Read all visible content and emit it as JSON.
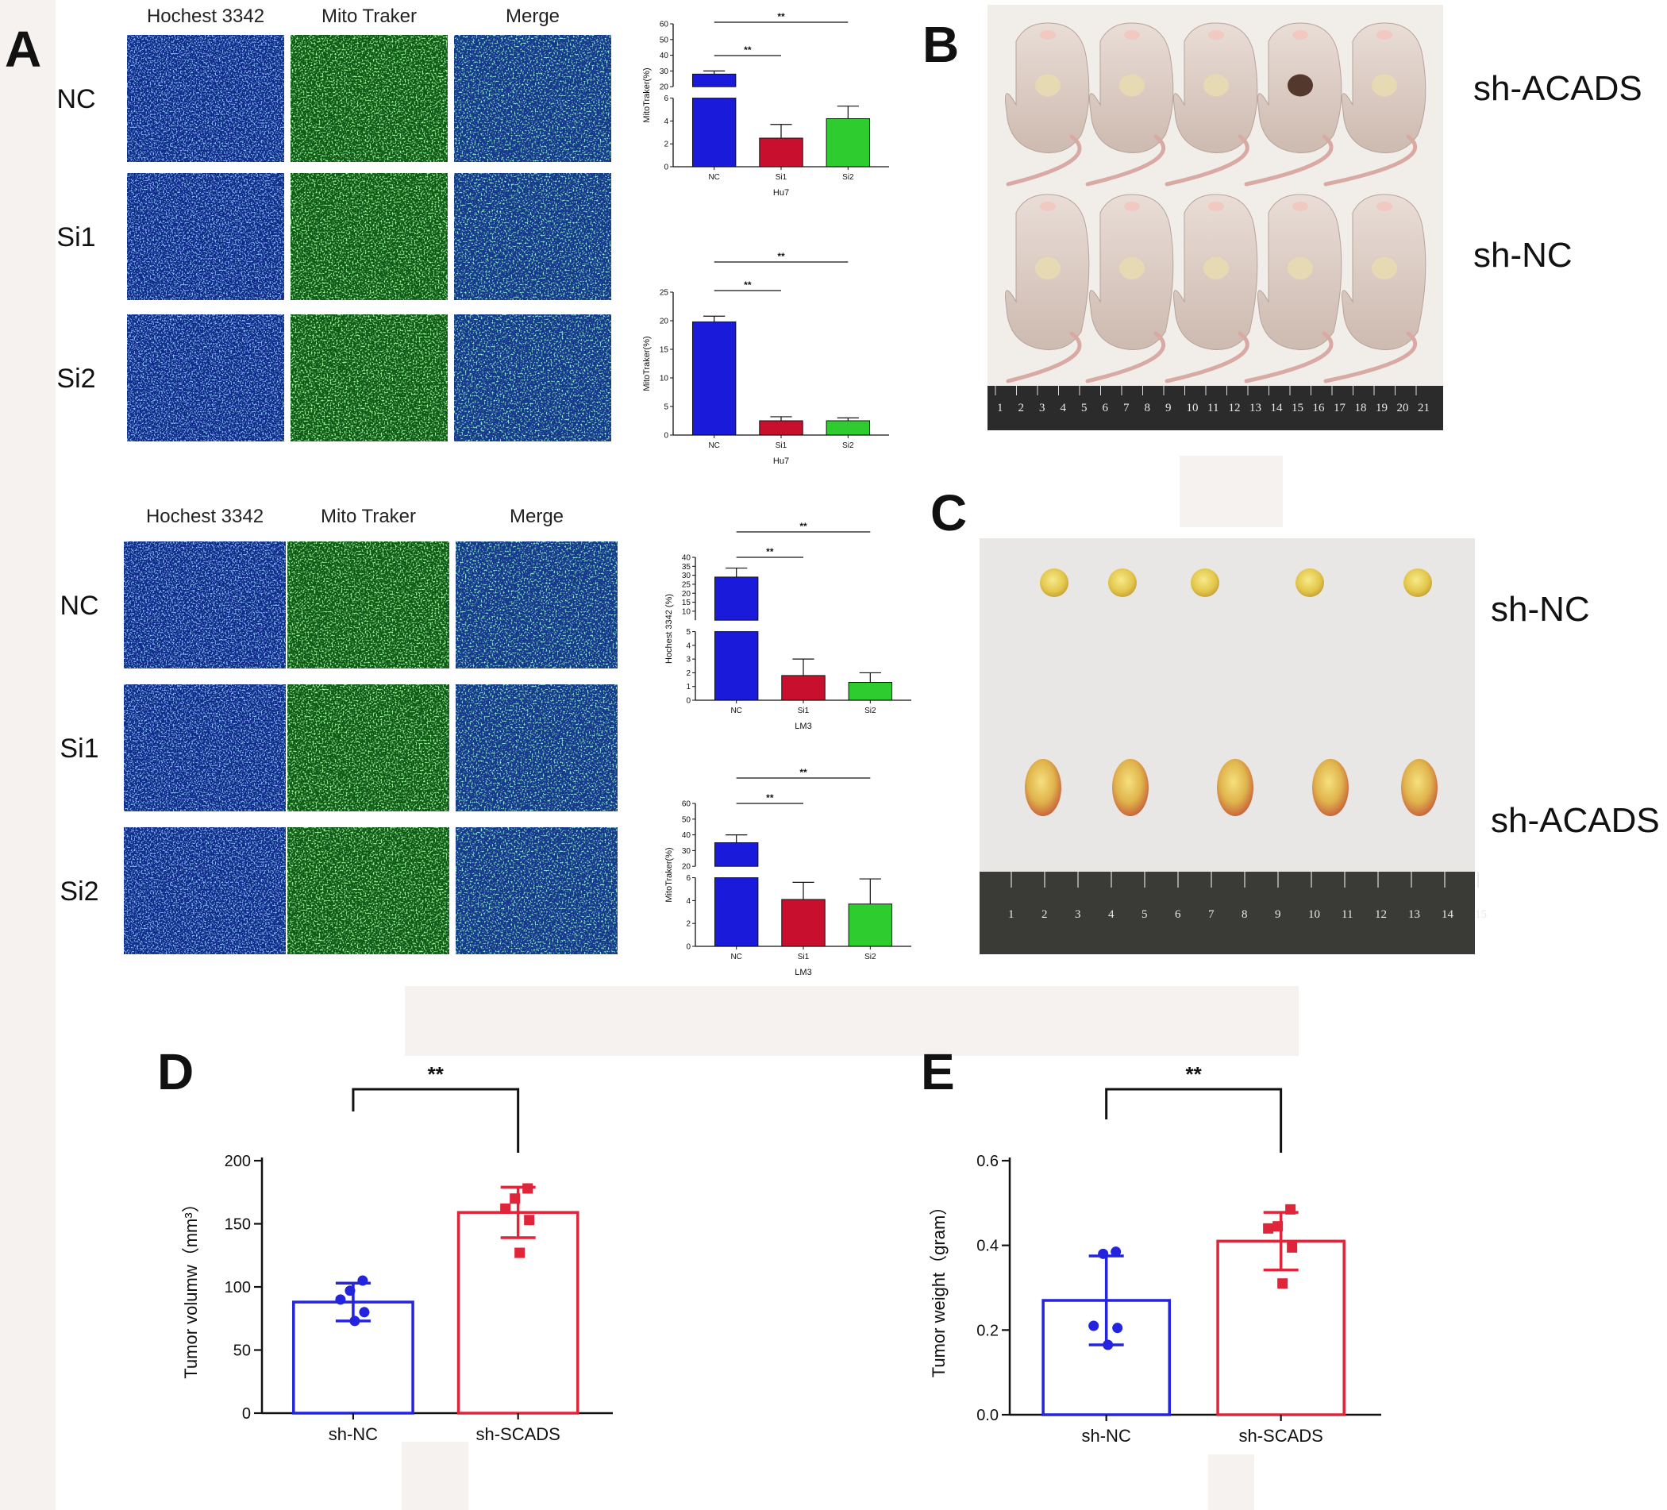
{
  "panels": {
    "A": "A",
    "B": "B",
    "C": "C",
    "D": "D",
    "E": "E"
  },
  "panel_a": {
    "top": {
      "headers": [
        "Hochest 3342",
        "Mito Traker",
        "Merge"
      ],
      "rows": [
        "NC",
        "Si1",
        "Si2"
      ]
    },
    "bottom": {
      "headers": [
        "Hochest 3342",
        "Mito Traker",
        "Merge"
      ],
      "rows": [
        "NC",
        "Si1",
        "Si2"
      ]
    }
  },
  "panel_b": {
    "labels": [
      "sh-ACADS",
      "sh-NC"
    ]
  },
  "panel_c": {
    "labels": [
      "sh-NC",
      "sh-ACADS"
    ]
  },
  "colors": {
    "blue": "#1a1adb",
    "red": "#c8102e",
    "green": "#2ecc2e",
    "d_blue": "#2323e0",
    "d_red": "#e0253a"
  },
  "chart_data": [
    {
      "type": "bar",
      "id": "A1",
      "categories": [
        "NC",
        "Si1",
        "Si2"
      ],
      "values": [
        28,
        2.5,
        4.2
      ],
      "errors": [
        2,
        1.2,
        1.1
      ],
      "xlabel": "Hu7",
      "ylabel": "MitoTraker(%)",
      "broken_axis": true,
      "lower_range": [
        0,
        6
      ],
      "upper_range": [
        20,
        60
      ],
      "lower_ticks": [
        0,
        2,
        4,
        6
      ],
      "upper_ticks": [
        20,
        30,
        40,
        50,
        60
      ],
      "significance": [
        "**",
        "**"
      ]
    },
    {
      "type": "bar",
      "id": "A2",
      "categories": [
        "NC",
        "Si1",
        "Si2"
      ],
      "values": [
        19.8,
        2.5,
        2.5
      ],
      "errors": [
        1,
        0.7,
        0.5
      ],
      "xlabel": "Hu7",
      "ylabel": "MitoTraker(%)",
      "ylim": [
        0,
        25
      ],
      "ticks": [
        0,
        5,
        10,
        15,
        20,
        25
      ],
      "significance": [
        "**",
        "**"
      ]
    },
    {
      "type": "bar",
      "id": "A3",
      "categories": [
        "NC",
        "Si1",
        "Si2"
      ],
      "values": [
        29,
        1.8,
        1.3
      ],
      "errors": [
        5,
        1.2,
        0.7
      ],
      "xlabel": "LM3",
      "ylabel": "Hochest 3342 (%)",
      "broken_axis": true,
      "lower_range": [
        0,
        5
      ],
      "upper_range": [
        5,
        40
      ],
      "lower_ticks": [
        0,
        1,
        2,
        3,
        4,
        5
      ],
      "upper_ticks": [
        10,
        15,
        20,
        25,
        30,
        35,
        40
      ],
      "significance": [
        "**",
        "**"
      ]
    },
    {
      "type": "bar",
      "id": "A4",
      "categories": [
        "NC",
        "Si1",
        "Si2"
      ],
      "values": [
        35,
        4.1,
        3.7
      ],
      "errors": [
        5,
        1.5,
        2.2
      ],
      "xlabel": "LM3",
      "ylabel": "MitoTraker(%)",
      "broken_axis": true,
      "lower_range": [
        0,
        6
      ],
      "upper_range": [
        20,
        60
      ],
      "lower_ticks": [
        0,
        2,
        4,
        6
      ],
      "upper_ticks": [
        20,
        30,
        40,
        50,
        60
      ],
      "significance": [
        "**",
        "**"
      ]
    },
    {
      "type": "bar",
      "id": "D",
      "categories": [
        "sh-NC",
        "sh-SCADS"
      ],
      "values": [
        88,
        159
      ],
      "errors": [
        15,
        20
      ],
      "points": [
        [
          105,
          97,
          90,
          80,
          73
        ],
        [
          178,
          170,
          162,
          153,
          127
        ]
      ],
      "ylabel": "Tumor volumw（mm³）",
      "ylim": [
        0,
        200
      ],
      "ticks": [
        0,
        50,
        100,
        150,
        200
      ],
      "significance": "**"
    },
    {
      "type": "bar",
      "id": "E",
      "categories": [
        "sh-NC",
        "sh-SCADS"
      ],
      "values": [
        0.27,
        0.41
      ],
      "errors": [
        0.105,
        0.068
      ],
      "points": [
        [
          0.385,
          0.38,
          0.21,
          0.205,
          0.165
        ],
        [
          0.485,
          0.445,
          0.44,
          0.395,
          0.31
        ]
      ],
      "ylabel": "Tumor weight（gram）",
      "ylim": [
        0,
        0.6
      ],
      "ticks": [
        0.0,
        0.2,
        0.4,
        0.6
      ],
      "significance": "**"
    }
  ]
}
